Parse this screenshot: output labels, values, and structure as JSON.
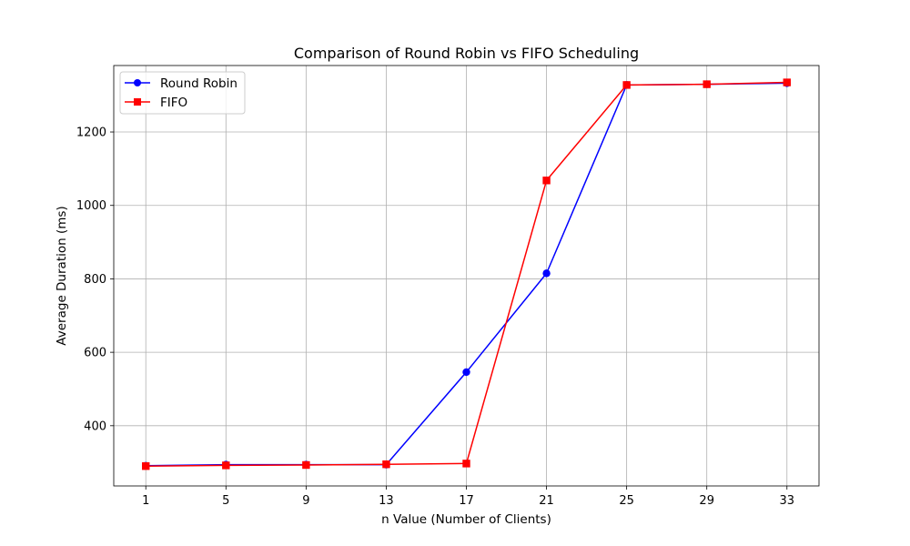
{
  "chart_data": {
    "type": "line",
    "title": "Comparison of Round Robin vs FIFO Scheduling",
    "xlabel": "n Value (Number of Clients)",
    "ylabel": "Average Duration (ms)",
    "x": [
      1,
      5,
      9,
      13,
      17,
      21,
      25,
      29,
      33
    ],
    "x_ticks": [
      "1",
      "5",
      "9",
      "13",
      "17",
      "21",
      "25",
      "29",
      "33"
    ],
    "y_ticks": [
      400,
      600,
      800,
      1000,
      1200
    ],
    "xlim": [
      -0.6,
      34.6
    ],
    "ylim": [
      236,
      1381
    ],
    "grid": true,
    "legend_position": "top-left",
    "series": [
      {
        "name": "Round Robin",
        "color": "#0000ff",
        "marker": "circle",
        "values": [
          291,
          294,
          294,
          294,
          546,
          815,
          1328,
          1330,
          1333
        ]
      },
      {
        "name": "FIFO",
        "color": "#ff0000",
        "marker": "square",
        "values": [
          290,
          292,
          293,
          295,
          297,
          1068,
          1328,
          1330,
          1335
        ]
      }
    ]
  }
}
